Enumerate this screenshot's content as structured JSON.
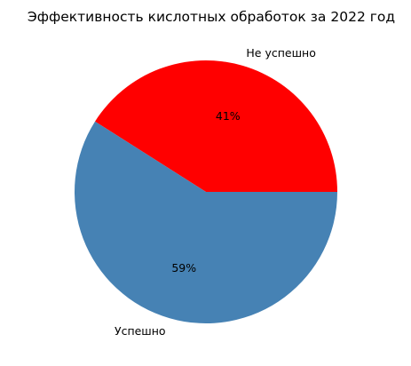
{
  "chart_data": {
    "type": "pie",
    "title": "Эффективность кислотных обработок за 2022 год",
    "categories": [
      "Не успешно",
      "Успешно"
    ],
    "values": [
      41,
      59
    ],
    "value_labels": [
      "41%",
      "59%"
    ],
    "colors": [
      "#ff0000",
      "#4682b4"
    ],
    "start_angle_deg": 0,
    "direction": "counterclockwise"
  }
}
